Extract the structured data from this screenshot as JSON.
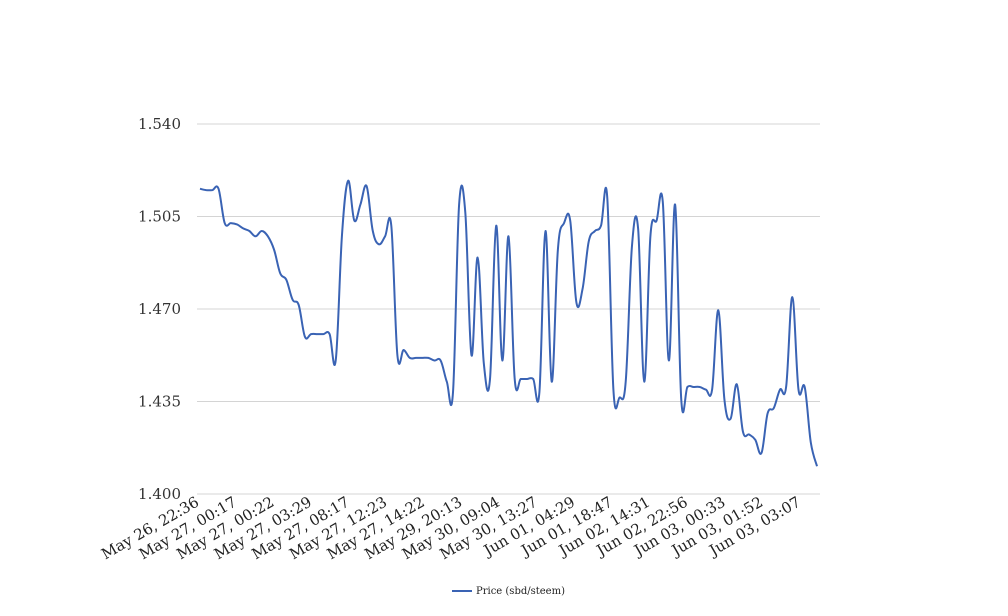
{
  "chart_data": {
    "type": "line",
    "title": "",
    "xlabel": "",
    "ylabel": "",
    "ylim": [
      1.4,
      1.54
    ],
    "yticks": [
      "1.400",
      "1.435",
      "1.470",
      "1.505",
      "1.540"
    ],
    "ytick_values": [
      1.4,
      1.435,
      1.47,
      1.505,
      1.54
    ],
    "x_tick_labels": [
      "May 26, 22:36",
      "May 27, 00:17",
      "May 27, 00:22",
      "May 27, 03:29",
      "May 27, 08:17",
      "May 27, 12:23",
      "May 27, 14:22",
      "May 29, 20:13",
      "May 30, 09:04",
      "May 30, 13:27",
      "Jun 01, 04:29",
      "Jun 01, 18:47",
      "Jun 02, 14:31",
      "Jun 02, 22:56",
      "Jun 03, 00:33",
      "Jun 03, 01:52",
      "Jun 03, 03:07"
    ],
    "grid": true,
    "legend_position": "bottom-center",
    "color": "#3a63b4",
    "series": [
      {
        "name": "Price (sbd/steem)",
        "values": [
          1.5155,
          1.515,
          1.515,
          1.5155,
          1.5025,
          1.5025,
          1.502,
          1.5005,
          1.4995,
          1.4975,
          1.4995,
          1.4975,
          1.4925,
          1.4835,
          1.481,
          1.4735,
          1.4715,
          1.4595,
          1.4605,
          1.4605,
          1.4605,
          1.4605,
          1.4505,
          1.4975,
          1.5185,
          1.5035,
          1.5095,
          1.5165,
          1.4995,
          1.4945,
          1.4975,
          1.5015,
          1.4525,
          1.4545,
          1.4515,
          1.4515,
          1.4515,
          1.4515,
          1.4505,
          1.4505,
          1.4425,
          1.4385,
          1.5095,
          1.5065,
          1.4525,
          1.4895,
          1.4495,
          1.4435,
          1.5015,
          1.4505,
          1.4975,
          1.4435,
          1.4435,
          1.4435,
          1.4435,
          1.4385,
          1.4995,
          1.4425,
          1.4925,
          1.5025,
          1.5035,
          1.4725,
          1.4775,
          1.4955,
          1.4995,
          1.5015,
          1.5125,
          1.4395,
          1.4365,
          1.4425,
          1.4935,
          1.5005,
          1.4425,
          1.4975,
          1.5035,
          1.5105,
          1.4505,
          1.5095,
          1.4355,
          1.4405,
          1.4405,
          1.4405,
          1.4395,
          1.4395,
          1.4695,
          1.4355,
          1.4285,
          1.4415,
          1.4235,
          1.4225,
          1.4205,
          1.4155,
          1.4305,
          1.4325,
          1.4395,
          1.4405,
          1.4745,
          1.4395,
          1.4405,
          1.4195,
          1.4105
        ]
      }
    ]
  }
}
